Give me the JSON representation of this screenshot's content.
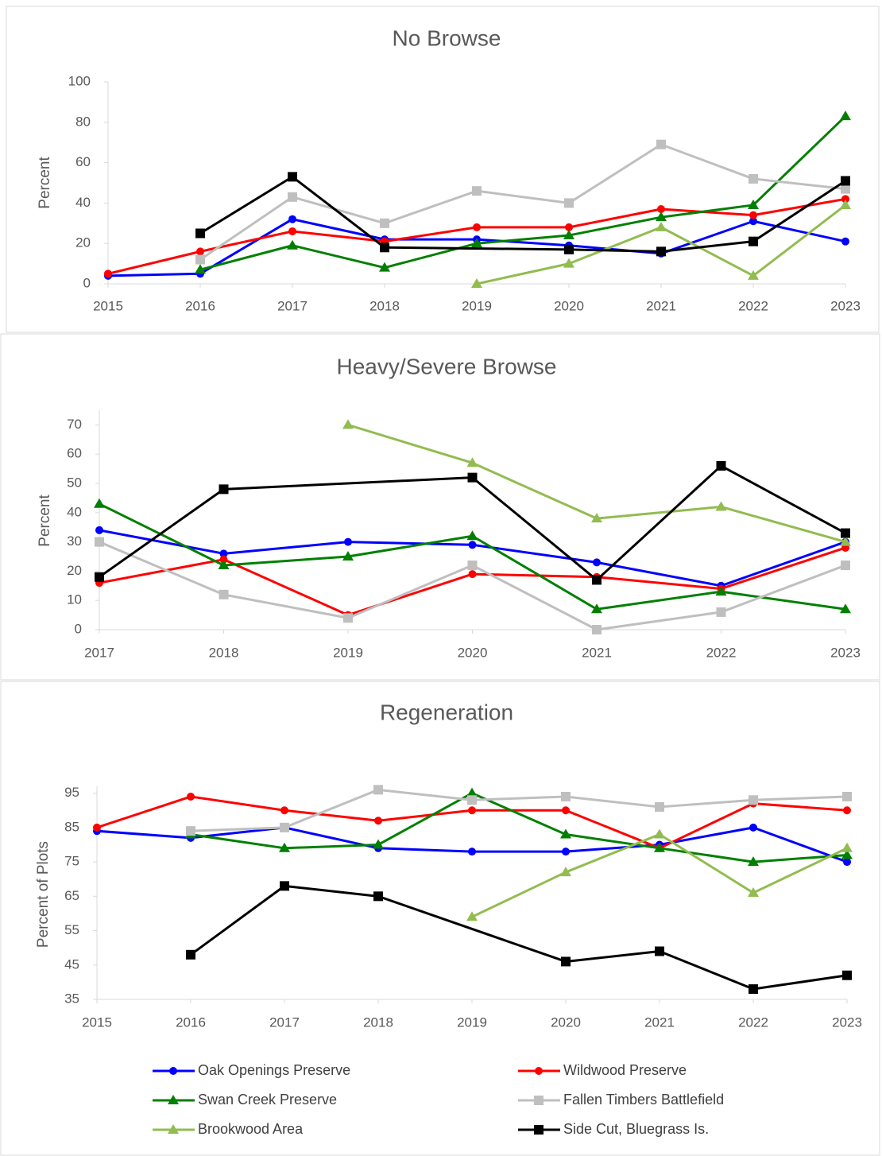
{
  "chart_data": [
    {
      "type": "line",
      "title": "No Browse",
      "y_label": "Percent",
      "x": [
        2015,
        2016,
        2017,
        2018,
        2019,
        2020,
        2021,
        2022,
        2023
      ],
      "xlim": [
        2015,
        2023
      ],
      "xticks": [
        2015,
        2016,
        2017,
        2018,
        2019,
        2020,
        2021,
        2022,
        2023
      ],
      "ylim": [
        0,
        100
      ],
      "yticks": [
        0,
        20,
        40,
        60,
        80,
        100
      ],
      "connect_gaps": true,
      "series": [
        {
          "color": "#0000ff",
          "marker": "circle",
          "values": [
            4,
            5,
            32,
            22,
            22,
            19,
            15,
            31,
            21
          ]
        },
        {
          "color": "#ff0000",
          "marker": "circle",
          "values": [
            5,
            16,
            26,
            21,
            28,
            28,
            37,
            34,
            42
          ]
        },
        {
          "color": "#008000",
          "marker": "triangle",
          "values": [
            null,
            7,
            19,
            8,
            20,
            24,
            33,
            39,
            83
          ]
        },
        {
          "color": "#bfbfbf",
          "marker": "square",
          "values": [
            null,
            12,
            43,
            30,
            46,
            40,
            69,
            52,
            47
          ]
        },
        {
          "color": "#92bc50",
          "marker": "triangle",
          "values": [
            null,
            null,
            null,
            null,
            0,
            10,
            28,
            4,
            39
          ]
        },
        {
          "color": "#000000",
          "marker": "square",
          "values": [
            null,
            25,
            53,
            18,
            null,
            17,
            16,
            21,
            51
          ]
        }
      ]
    },
    {
      "type": "line",
      "title": "Heavy/Severe Browse",
      "y_label": "Percent",
      "x": [
        2017,
        2018,
        2019,
        2020,
        2021,
        2022,
        2023
      ],
      "xlim": [
        2017,
        2023
      ],
      "xticks": [
        2017,
        2018,
        2019,
        2020,
        2021,
        2022,
        2023
      ],
      "ylim": [
        0,
        75
      ],
      "yticks": [
        0,
        10,
        20,
        30,
        40,
        50,
        60,
        70
      ],
      "connect_gaps": true,
      "series": [
        {
          "color": "#0000ff",
          "marker": "circle",
          "values": [
            34,
            26,
            30,
            29,
            23,
            15,
            30
          ]
        },
        {
          "color": "#ff0000",
          "marker": "circle",
          "values": [
            16,
            24,
            5,
            19,
            18,
            14,
            28
          ]
        },
        {
          "color": "#008000",
          "marker": "triangle",
          "values": [
            43,
            22,
            25,
            32,
            7,
            13,
            7
          ]
        },
        {
          "color": "#bfbfbf",
          "marker": "square",
          "values": [
            30,
            12,
            4,
            22,
            0,
            6,
            22
          ]
        },
        {
          "color": "#92bc50",
          "marker": "triangle",
          "values": [
            null,
            null,
            70,
            57,
            38,
            42,
            30
          ]
        },
        {
          "color": "#000000",
          "marker": "square",
          "values": [
            18,
            48,
            null,
            52,
            17,
            56,
            33
          ]
        }
      ]
    },
    {
      "type": "line",
      "title": "Regeneration",
      "y_label": "Percent of Plots",
      "x": [
        2015,
        2016,
        2017,
        2018,
        2019,
        2020,
        2021,
        2022,
        2023
      ],
      "xlim": [
        2015,
        2023
      ],
      "xticks": [
        2015,
        2016,
        2017,
        2018,
        2019,
        2020,
        2021,
        2022,
        2023
      ],
      "ylim": [
        35,
        97
      ],
      "yticks": [
        35,
        45,
        55,
        65,
        75,
        85,
        95
      ],
      "connect_gaps": true,
      "legend": "bottom",
      "series": [
        {
          "name": "Oak Openings Preserve",
          "color": "#0000ff",
          "marker": "circle",
          "values": [
            84,
            82,
            85,
            79,
            78,
            78,
            80,
            85,
            75
          ]
        },
        {
          "name": "Wildwood Preserve",
          "color": "#ff0000",
          "marker": "circle",
          "values": [
            85,
            94,
            90,
            87,
            90,
            90,
            79,
            92,
            90
          ]
        },
        {
          "name": "Swan Creek Preserve",
          "color": "#008000",
          "marker": "triangle",
          "values": [
            null,
            83,
            79,
            80,
            95,
            83,
            79,
            75,
            77
          ]
        },
        {
          "name": "Fallen Timbers Battlefield",
          "color": "#bfbfbf",
          "marker": "square",
          "values": [
            null,
            84,
            85,
            96,
            93,
            94,
            91,
            93,
            94
          ]
        },
        {
          "name": "Brookwood Area",
          "color": "#92bc50",
          "marker": "triangle",
          "values": [
            null,
            null,
            null,
            null,
            59,
            72,
            83,
            66,
            79
          ]
        },
        {
          "name": "Side Cut, Bluegrass Is.",
          "color": "#000000",
          "marker": "square",
          "values": [
            null,
            48,
            68,
            65,
            null,
            46,
            49,
            38,
            42
          ]
        }
      ]
    }
  ]
}
